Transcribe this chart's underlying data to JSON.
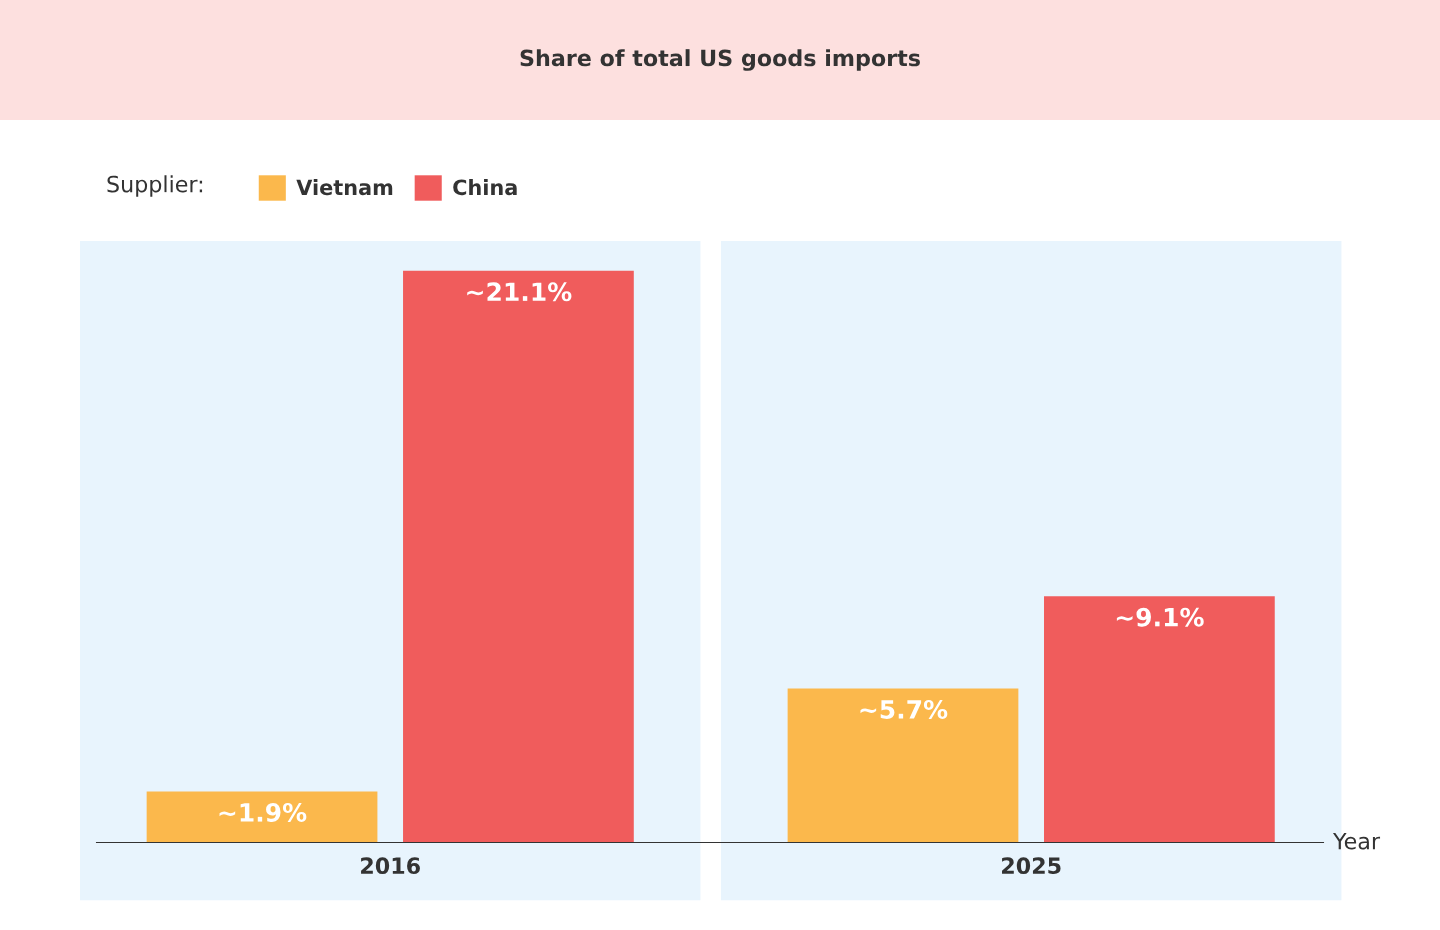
{
  "chart_data": {
    "type": "bar",
    "title": "Share of total US goods imports",
    "xlabel": "Year",
    "legend_title": "Supplier:",
    "legend": "top left",
    "grid": false,
    "bands": [
      {
        "axis": "x",
        "from": "2016",
        "to": "2016",
        "color": "#e8f4fd"
      },
      {
        "axis": "x",
        "from": "2025",
        "to": "2025",
        "color": "#e8f4fd"
      }
    ],
    "categories": [
      "2016",
      "2025"
    ],
    "series": [
      {
        "name": "Vietnam",
        "color": "#fbb84c",
        "values": [
          1.9,
          5.7
        ],
        "value_labels": [
          "~1.9%",
          "~5.7%"
        ]
      },
      {
        "name": "China",
        "color": "#f05c5c",
        "values": [
          21.1,
          9.1
        ],
        "value_labels": [
          "~21.1%",
          "~9.1%"
        ]
      }
    ]
  }
}
